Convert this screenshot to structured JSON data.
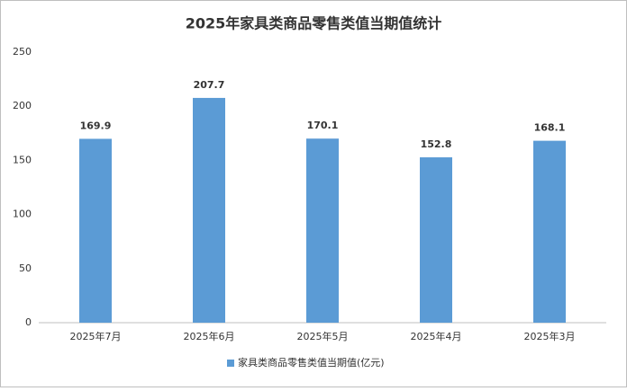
{
  "chart_data": {
    "type": "bar",
    "title": "2025年家具类商品零售类值当期值统计",
    "categories": [
      "2025年7月",
      "2025年6月",
      "2025年5月",
      "2025年4月",
      "2025年3月"
    ],
    "series": [
      {
        "name": "家具类商品零售类值当期值(亿元)",
        "color": "#5b9bd5",
        "values": [
          169.9,
          207.7,
          170.1,
          152.8,
          168.1
        ]
      }
    ],
    "ylim": [
      0,
      250
    ],
    "yticks": [
      0,
      50,
      100,
      150,
      200,
      250
    ],
    "grid": false,
    "legend": "bottom"
  }
}
